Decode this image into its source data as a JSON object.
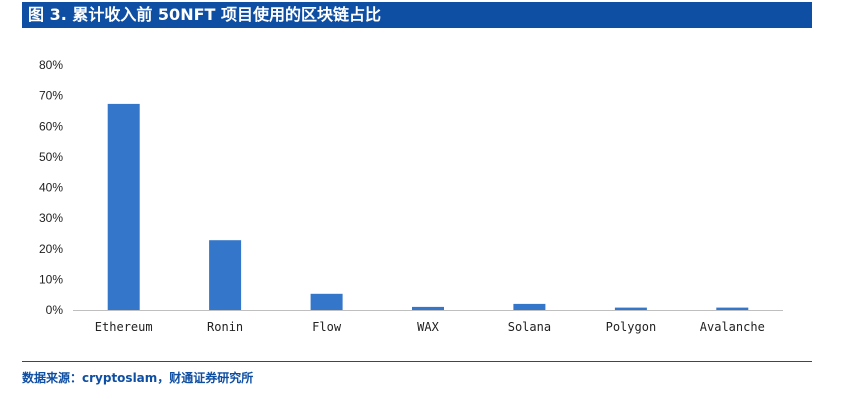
{
  "figure": {
    "title": "图 3. 累计收入前 50NFT 项目使用的区块链占比",
    "source": "数据来源：cryptoslam，财通证券研究所"
  },
  "colors": {
    "bar": "#3476c9",
    "title_bg": "#0f4fa3",
    "axis": "#bfbfbf"
  },
  "chart_data": {
    "type": "bar",
    "categories": [
      "Ethereum",
      "Ronin",
      "Flow",
      "WAX",
      "Solana",
      "Polygon",
      "Avalanche"
    ],
    "values": [
      0.673,
      0.228,
      0.053,
      0.01,
      0.02,
      0.008,
      0.008
    ],
    "ylim": [
      0,
      0.8
    ],
    "yticks": [
      0,
      0.1,
      0.2,
      0.3,
      0.4,
      0.5,
      0.6,
      0.7,
      0.8
    ],
    "ytick_labels": [
      "0%",
      "10%",
      "20%",
      "30%",
      "40%",
      "50%",
      "60%",
      "70%",
      "80%"
    ],
    "grid": false,
    "legend": "none"
  }
}
